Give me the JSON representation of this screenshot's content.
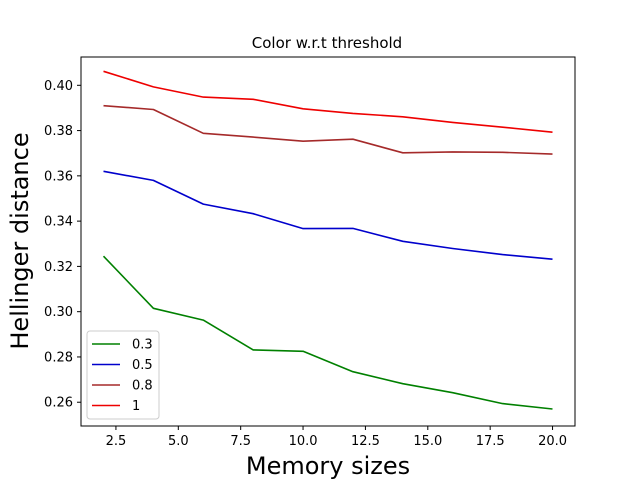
{
  "chart_data": {
    "type": "line",
    "title": "Color w.r.t threshold",
    "xlabel": "Memory sizes",
    "ylabel": "Hellinger distance",
    "x": [
      2,
      4,
      6,
      8,
      10,
      12,
      14,
      16,
      18,
      20
    ],
    "xlim": [
      1.1,
      20.9
    ],
    "ylim": [
      0.2495,
      0.4125
    ],
    "xticks": [
      2.5,
      5.0,
      7.5,
      10.0,
      12.5,
      15.0,
      17.5,
      20.0
    ],
    "xtick_labels": [
      "2.5",
      "5.0",
      "7.5",
      "10.0",
      "12.5",
      "15.0",
      "17.5",
      "20.0"
    ],
    "yticks": [
      0.26,
      0.28,
      0.3,
      0.32,
      0.34,
      0.36,
      0.38,
      0.4
    ],
    "ytick_labels": [
      "0.26",
      "0.28",
      "0.30",
      "0.32",
      "0.34",
      "0.36",
      "0.38",
      "0.40"
    ],
    "grid": false,
    "legend_position": "lower-left",
    "series": [
      {
        "name": "0.3",
        "color": "#008000",
        "values": [
          0.3245,
          0.3015,
          0.2963,
          0.2831,
          0.2825,
          0.2735,
          0.2682,
          0.2642,
          0.2594,
          0.257
        ]
      },
      {
        "name": "0.5",
        "color": "#0000cc",
        "values": [
          0.362,
          0.358,
          0.3475,
          0.3433,
          0.3367,
          0.3368,
          0.3311,
          0.3279,
          0.3252,
          0.3232
        ]
      },
      {
        "name": "0.8",
        "color": "#a52a2a",
        "values": [
          0.391,
          0.3893,
          0.3788,
          0.3771,
          0.3753,
          0.3762,
          0.3702,
          0.3706,
          0.3704,
          0.3696
        ]
      },
      {
        "name": "1",
        "color": "#ee0000",
        "values": [
          0.4062,
          0.3993,
          0.3948,
          0.3938,
          0.3896,
          0.3876,
          0.3861,
          0.3836,
          0.3815,
          0.3793
        ]
      }
    ]
  }
}
